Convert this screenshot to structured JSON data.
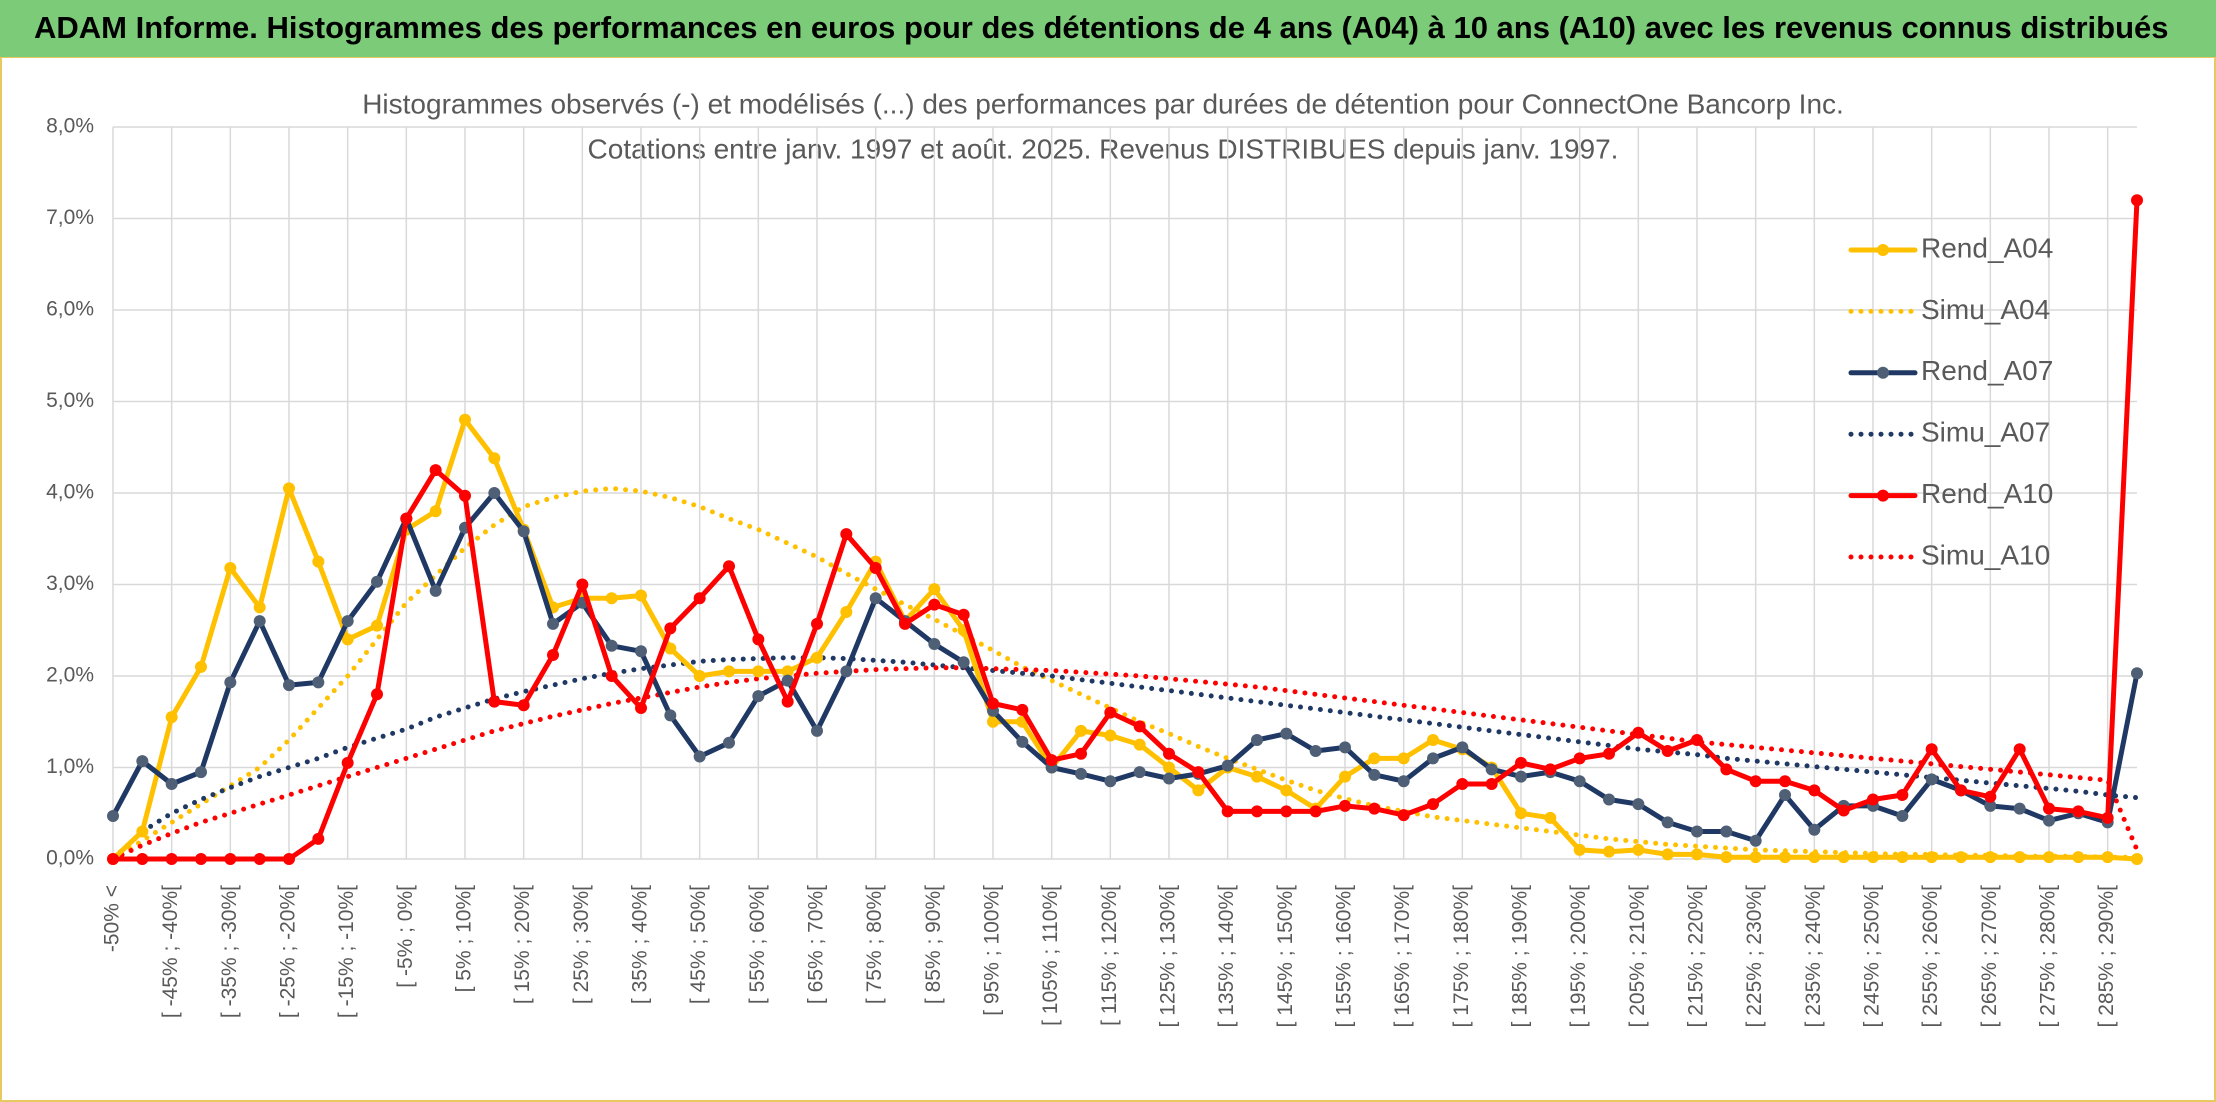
{
  "header": {
    "title": "ADAM Informe. Histogrammes des performances en euros pour des détentions de 4 ans (A04) à 10 ans (A10) avec les revenus connus distribués"
  },
  "chart_data": {
    "type": "line",
    "title": "Histogrammes observés (-) et modélisés (...) des performances par durées de détention pour ConnectOne Bancorp Inc.",
    "subtitle": "Cotations entre janv. 1997 et août. 2025. Revenus DISTRIBUES depuis janv. 1997.",
    "categories": [
      "-50% <",
      null,
      "[ -45% ; -40%[",
      null,
      "[ -35% ; -30%[",
      null,
      "[ -25% ; -20%[",
      null,
      "[ -15% ; -10%[",
      null,
      "[ -5% ; 0%[",
      null,
      "[ 5% ; 10%[",
      null,
      "[ 15% ; 20%[",
      null,
      "[ 25% ; 30%[",
      null,
      "[ 35% ; 40%[",
      null,
      "[ 45% ; 50%[",
      null,
      "[ 55% ; 60%[",
      null,
      "[ 65% ; 70%[",
      null,
      "[ 75% ; 80%[",
      null,
      "[ 85% ; 90%[",
      null,
      "[ 95% ; 100%[",
      null,
      "[ 105% ; 110%[",
      null,
      "[ 115% ; 120%[",
      null,
      "[ 125% ; 130%[",
      null,
      "[ 135% ; 140%[",
      null,
      "[ 145% ; 150%[",
      null,
      "[ 155% ; 160%[",
      null,
      "[ 165% ; 170%[",
      null,
      "[ 175% ; 180%[",
      null,
      "[ 185% ; 190%[",
      null,
      "[ 195% ; 200%[",
      null,
      "[ 205% ; 210%[",
      null,
      "[ 215% ; 220%[",
      null,
      "[ 225% ; 230%[",
      null,
      "[ 235% ; 240%[",
      null,
      "[ 245% ; 250%[",
      null,
      "[ 255% ; 260%[",
      null,
      "[ 265% ; 270%[",
      null,
      "[ 275% ; 280%[",
      null,
      "[ 285% ; 290%[",
      null
    ],
    "series": [
      {
        "name": "Rend_A04",
        "color": "#ffc000",
        "style": "solid",
        "marker_color": "#ffc000",
        "values": [
          0,
          0.3,
          1.55,
          2.1,
          3.18,
          2.75,
          4.05,
          3.25,
          2.4,
          2.55,
          3.6,
          3.8,
          4.8,
          4.38,
          3.6,
          2.75,
          2.85,
          2.85,
          2.88,
          2.3,
          2.0,
          2.05,
          2.05,
          2.05,
          2.2,
          2.7,
          3.25,
          2.6,
          2.95,
          2.5,
          1.5,
          1.5,
          1.0,
          1.4,
          1.35,
          1.25,
          1.0,
          0.75,
          1.0,
          0.9,
          0.75,
          0.55,
          0.9,
          1.1,
          1.1,
          1.3,
          1.2,
          1.0,
          0.5,
          0.45,
          0.1,
          0.08,
          0.1,
          0.05,
          0.05,
          0.02,
          0.02,
          0.02,
          0.02,
          0.02,
          0.02,
          0.02,
          0.02,
          0.02,
          0.02,
          0.02,
          0.02,
          0.02,
          0.02,
          0
        ]
      },
      {
        "name": "Simu_A04",
        "color": "#ffc000",
        "style": "dotted",
        "values": [
          0,
          0.2,
          0.4,
          0.6,
          0.8,
          1.0,
          1.3,
          1.65,
          2.0,
          2.4,
          2.8,
          3.1,
          3.4,
          3.65,
          3.85,
          3.95,
          4.02,
          4.05,
          4.02,
          3.95,
          3.85,
          3.72,
          3.6,
          3.45,
          3.3,
          3.12,
          2.95,
          2.78,
          2.62,
          2.45,
          2.28,
          2.1,
          1.95,
          1.8,
          1.65,
          1.5,
          1.37,
          1.23,
          1.1,
          0.98,
          0.86,
          0.75,
          0.66,
          0.58,
          0.52,
          0.46,
          0.42,
          0.38,
          0.34,
          0.3,
          0.26,
          0.22,
          0.19,
          0.16,
          0.14,
          0.12,
          0.1,
          0.09,
          0.08,
          0.07,
          0.06,
          0.05,
          0.05,
          0.04,
          0.04,
          0.03,
          0.03,
          0.03,
          0.02,
          0.02
        ]
      },
      {
        "name": "Rend_A07",
        "color": "#1f3864",
        "style": "solid",
        "marker_color": "#4f5f75",
        "values": [
          0.47,
          1.07,
          0.82,
          0.95,
          1.93,
          2.6,
          1.9,
          1.93,
          2.6,
          3.03,
          3.72,
          2.93,
          3.62,
          4.0,
          3.58,
          2.57,
          2.8,
          2.33,
          2.27,
          1.57,
          1.12,
          1.27,
          1.78,
          1.95,
          1.4,
          2.05,
          2.85,
          2.6,
          2.35,
          2.15,
          1.62,
          1.28,
          1.0,
          0.93,
          0.85,
          0.95,
          0.88,
          0.93,
          1.02,
          1.3,
          1.37,
          1.18,
          1.22,
          0.92,
          0.85,
          1.1,
          1.22,
          0.98,
          0.9,
          0.95,
          0.85,
          0.65,
          0.6,
          0.4,
          0.3,
          0.3,
          0.2,
          0.7,
          0.32,
          0.58,
          0.58,
          0.47,
          0.87,
          0.75,
          0.58,
          0.55,
          0.42,
          0.5,
          0.4,
          2.03
        ]
      },
      {
        "name": "Simu_A07",
        "color": "#1f3864",
        "style": "dotted",
        "values": [
          0,
          0.3,
          0.5,
          0.65,
          0.78,
          0.9,
          1.0,
          1.1,
          1.22,
          1.32,
          1.42,
          1.55,
          1.65,
          1.75,
          1.83,
          1.9,
          1.97,
          2.03,
          2.08,
          2.12,
          2.16,
          2.18,
          2.19,
          2.2,
          2.2,
          2.19,
          2.17,
          2.15,
          2.12,
          2.09,
          2.06,
          2.03,
          2.0,
          1.96,
          1.92,
          1.88,
          1.84,
          1.8,
          1.76,
          1.72,
          1.68,
          1.64,
          1.6,
          1.56,
          1.52,
          1.48,
          1.44,
          1.4,
          1.36,
          1.32,
          1.28,
          1.24,
          1.2,
          1.17,
          1.14,
          1.1,
          1.07,
          1.04,
          1.01,
          0.98,
          0.95,
          0.92,
          0.89,
          0.86,
          0.83,
          0.8,
          0.77,
          0.74,
          0.7,
          0.67
        ]
      },
      {
        "name": "Rend_A10",
        "color": "#ff0000",
        "style": "solid",
        "marker_color": "#ff0000",
        "values": [
          0,
          0,
          0,
          0,
          0,
          0,
          0,
          0.22,
          1.05,
          1.8,
          3.72,
          4.25,
          3.97,
          1.72,
          1.68,
          2.23,
          3.0,
          2.0,
          1.65,
          2.52,
          2.85,
          3.2,
          2.4,
          1.72,
          2.57,
          3.55,
          3.18,
          2.57,
          2.78,
          2.67,
          1.7,
          1.63,
          1.08,
          1.15,
          1.6,
          1.45,
          1.15,
          0.95,
          0.52,
          0.52,
          0.52,
          0.52,
          0.58,
          0.55,
          0.48,
          0.6,
          0.82,
          0.82,
          1.05,
          0.98,
          1.1,
          1.15,
          1.38,
          1.18,
          1.3,
          0.98,
          0.85,
          0.85,
          0.75,
          0.53,
          0.65,
          0.7,
          1.2,
          0.75,
          0.68,
          1.2,
          0.55,
          0.52,
          0.45,
          7.2
        ]
      },
      {
        "name": "Simu_A10",
        "color": "#ff0000",
        "style": "dotted",
        "values": [
          0,
          0.15,
          0.28,
          0.4,
          0.5,
          0.6,
          0.7,
          0.8,
          0.9,
          1.0,
          1.1,
          1.2,
          1.3,
          1.4,
          1.48,
          1.56,
          1.63,
          1.7,
          1.76,
          1.82,
          1.88,
          1.93,
          1.97,
          2.0,
          2.03,
          2.05,
          2.07,
          2.08,
          2.09,
          2.09,
          2.08,
          2.07,
          2.06,
          2.04,
          2.02,
          2.0,
          1.97,
          1.94,
          1.91,
          1.88,
          1.84,
          1.8,
          1.76,
          1.72,
          1.68,
          1.64,
          1.6,
          1.56,
          1.52,
          1.48,
          1.44,
          1.4,
          1.36,
          1.32,
          1.28,
          1.25,
          1.22,
          1.19,
          1.16,
          1.13,
          1.1,
          1.07,
          1.04,
          1.01,
          0.98,
          0.95,
          0.92,
          0.89,
          0.86,
          0.1
        ]
      }
    ],
    "ylim": [
      0,
      8
    ],
    "yticks": [
      {
        "value": 0,
        "label": "0,0%"
      },
      {
        "value": 1,
        "label": "1,0%"
      },
      {
        "value": 2,
        "label": "2,0%"
      },
      {
        "value": 3,
        "label": "3,0%"
      },
      {
        "value": 4,
        "label": "4,0%"
      },
      {
        "value": 5,
        "label": "5,0%"
      },
      {
        "value": 6,
        "label": "6,0%"
      },
      {
        "value": 7,
        "label": "7,0%"
      },
      {
        "value": 8,
        "label": "8,0%"
      }
    ],
    "grid": true,
    "legend": "right"
  }
}
